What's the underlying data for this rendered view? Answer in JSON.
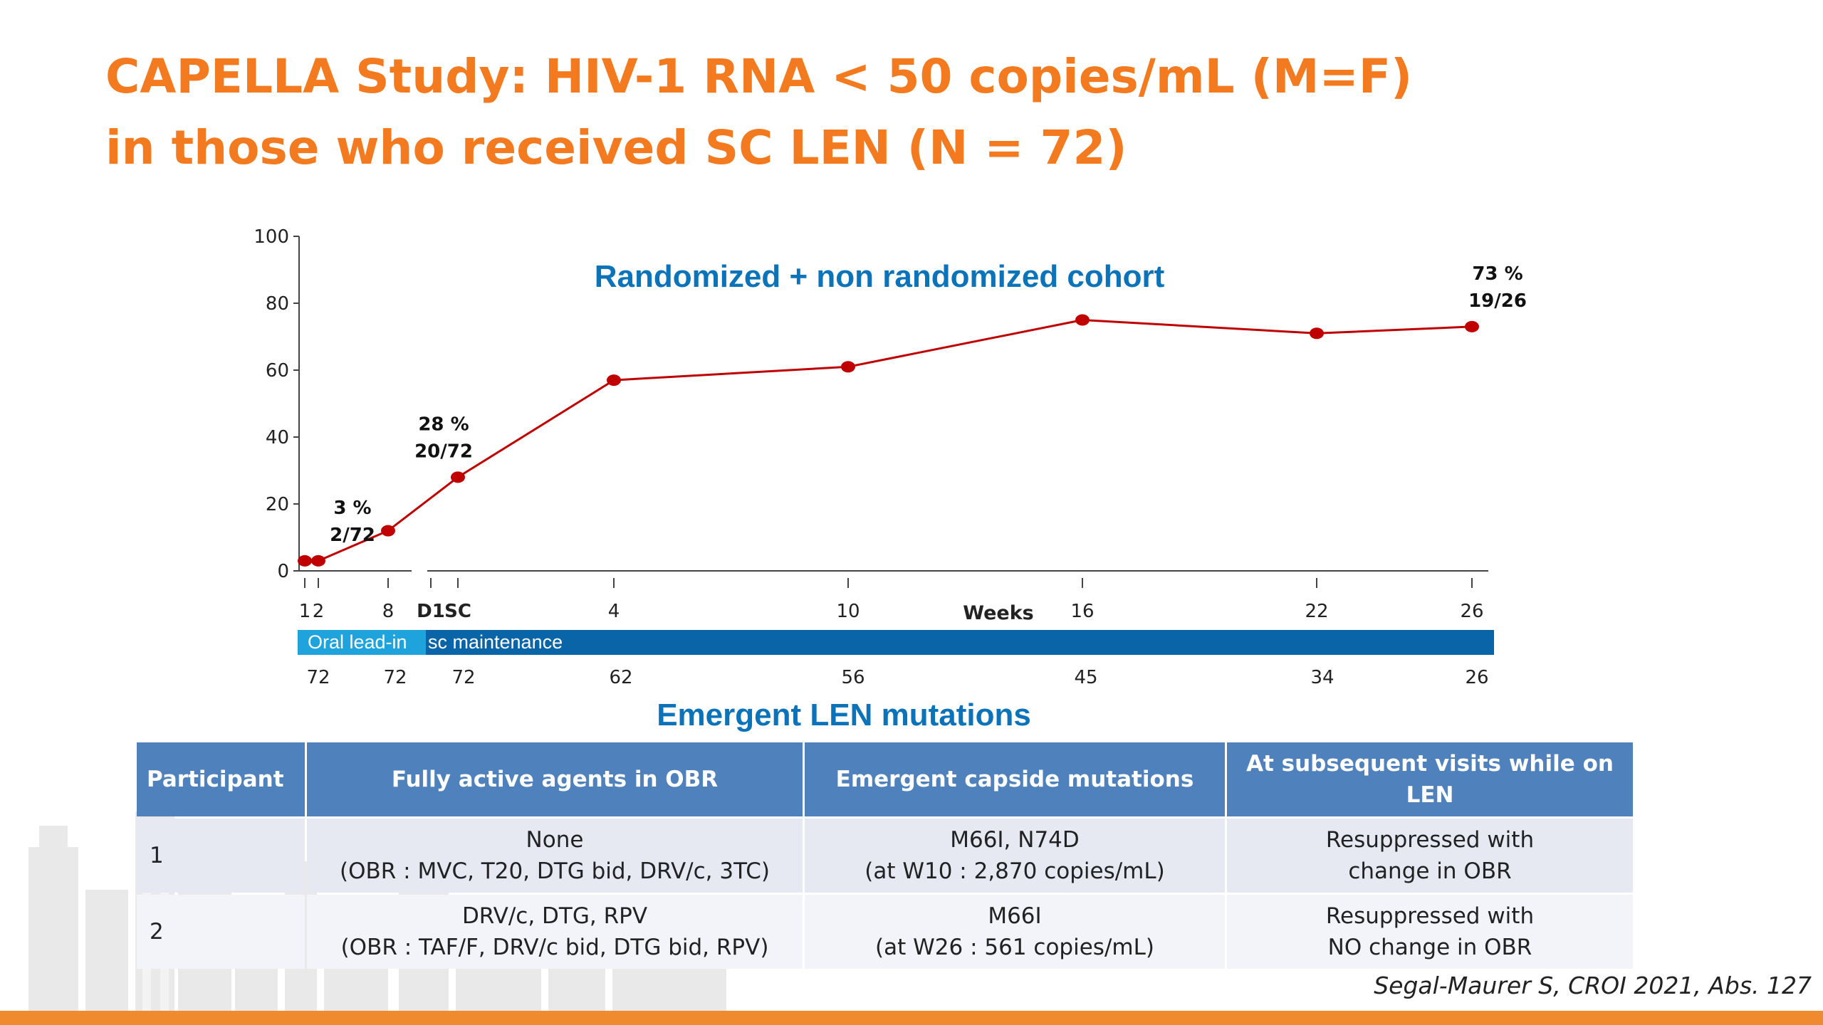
{
  "slide": {
    "title_line1": "CAPELLA Study: HIV-1 RNA < 50 copies/mL (M=F)",
    "title_line2": "in those who received SC LEN (N = 72)",
    "citation": "Segal-Maurer S, CROI 2021, Abs. 127"
  },
  "chart_data": {
    "type": "line",
    "title": "Randomized + non randomized cohort",
    "xlabel": "Weeks",
    "ylabel": "",
    "ylim": [
      0,
      100
    ],
    "yticks": [
      0,
      20,
      40,
      60,
      80,
      100
    ],
    "color": "#c00000",
    "title_color": "#0b73b9",
    "x_categories": [
      "1",
      "2",
      "8",
      "D1",
      "SC",
      "4",
      "10",
      "16",
      "22",
      "26"
    ],
    "series": [
      {
        "name": "",
        "x": [
          "1",
          "2",
          "8",
          "SC",
          "4",
          "10",
          "16",
          "22",
          "26"
        ],
        "y": [
          3,
          3,
          12,
          28,
          57,
          61,
          75,
          71,
          73
        ]
      }
    ],
    "annotations": [
      {
        "at": "2",
        "text_top": "3 %",
        "text_bottom": "2/72"
      },
      {
        "at": "SC",
        "text_top": "28 %",
        "text_bottom": "20/72"
      },
      {
        "at": "26",
        "text_top": "73 %",
        "text_bottom": "19/26"
      }
    ],
    "phases": [
      {
        "label": "Oral lead-in",
        "color": "#1fa3dc"
      },
      {
        "label": "sc maintenance",
        "color": "#0a65a8"
      }
    ],
    "n_at_risk": [
      {
        "at": "2",
        "n": "72"
      },
      {
        "at": "8",
        "n": "72"
      },
      {
        "at": "SC",
        "n": "72"
      },
      {
        "at": "4",
        "n": "62"
      },
      {
        "at": "10",
        "n": "56"
      },
      {
        "at": "16",
        "n": "45"
      },
      {
        "at": "22",
        "n": "34"
      },
      {
        "at": "26",
        "n": "26"
      }
    ]
  },
  "mutations_table": {
    "title": "Emergent LEN mutations",
    "headers": [
      "Participant",
      "Fully active agents in OBR",
      "Emergent capside mutations",
      "At subsequent visits while on LEN"
    ],
    "rows": [
      [
        "1",
        "None",
        "(OBR : MVC, T20, DTG bid, DRV/c, 3TC)",
        "M66I, N74D",
        "(at W10 : 2,870 copies/mL)",
        "Resuppressed with",
        "change in OBR"
      ],
      [
        "2",
        "DRV/c, DTG, RPV",
        "(OBR : TAF/F, DRV/c bid, DTG bid, RPV)",
        "M66I",
        "(at W26 : 561 copies/mL)",
        "Resuppressed with",
        "NO change in OBR"
      ]
    ]
  }
}
